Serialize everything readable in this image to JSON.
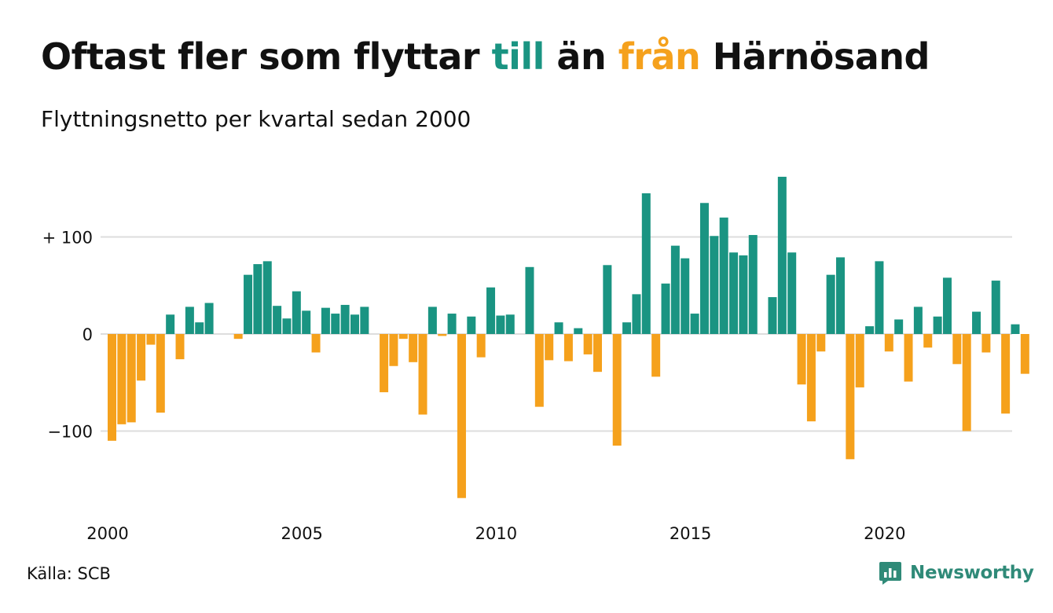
{
  "title": {
    "part1": "Oftast fler som flyttar ",
    "part2": "till",
    "part3": " än ",
    "part4": "från",
    "part5": " Härnösand"
  },
  "subtitle": "Flyttningsnetto per kvartal sedan 2000",
  "source": "Källa: SCB",
  "brand": {
    "name": "Newsworthy",
    "icon": "newsworthy-logo-icon"
  },
  "colors": {
    "positive": "#1a9482",
    "negative": "#f5a11c",
    "grid": "#dddddd",
    "text": "#111111",
    "brand": "#2f8a78"
  },
  "chart_data": {
    "type": "bar",
    "x_start": "2000 Q1",
    "x_step": "quarter",
    "values": [
      -110,
      -93,
      -91,
      -48,
      -11,
      -81,
      20,
      -26,
      28,
      12,
      32,
      0,
      0,
      -5,
      61,
      72,
      75,
      29,
      16,
      44,
      24,
      -19,
      27,
      21,
      30,
      20,
      28,
      0,
      -60,
      -33,
      -5,
      -29,
      -83,
      28,
      -2,
      21,
      -169,
      18,
      -24,
      48,
      19,
      20,
      0,
      69,
      -75,
      -27,
      12,
      -28,
      6,
      -21,
      -39,
      71,
      -115,
      12,
      41,
      145,
      -44,
      52,
      91,
      78,
      21,
      135,
      101,
      120,
      84,
      81,
      102,
      0,
      38,
      162,
      84,
      -52,
      -90,
      -18,
      61,
      79,
      -129,
      -55,
      8,
      75,
      -18,
      15,
      -49,
      28,
      -14,
      18,
      58,
      -31,
      -100,
      23,
      -19,
      55,
      -82,
      10,
      -41
    ],
    "x_ticks": [
      "2000",
      "2005",
      "2010",
      "2015",
      "2020"
    ],
    "x_tick_positions": [
      2000,
      2005,
      2010,
      2015,
      2020
    ],
    "y_ticks": [
      100,
      0,
      -100
    ],
    "y_tick_labels": [
      "+ 100",
      "0",
      "−100"
    ],
    "ylim": [
      -180,
      170
    ],
    "grid": true,
    "legend": "none"
  }
}
